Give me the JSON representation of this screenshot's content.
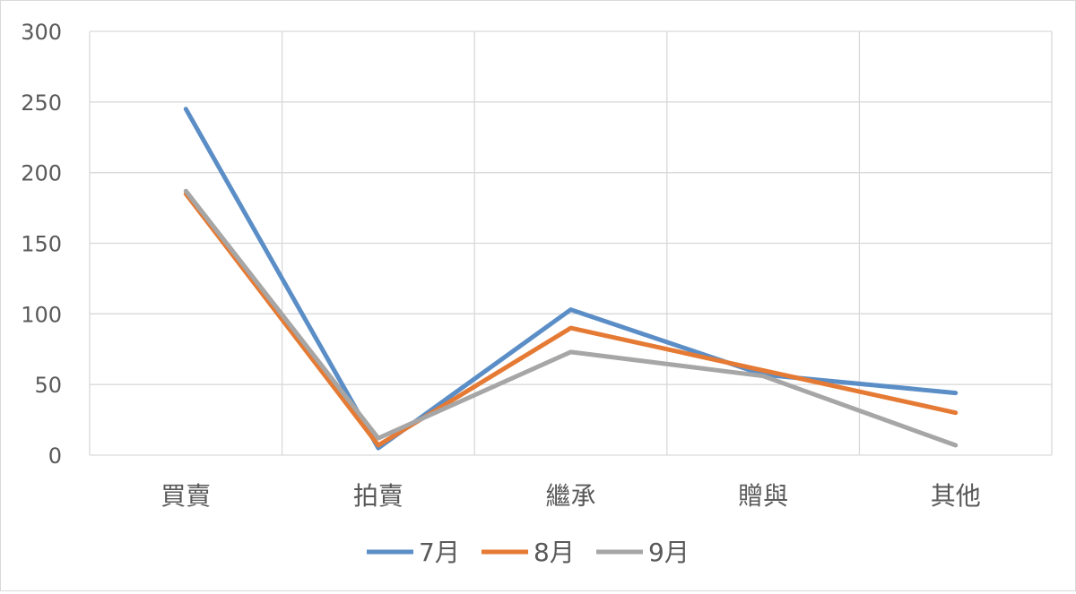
{
  "chart_data": {
    "type": "line",
    "categories": [
      "買賣",
      "拍賣",
      "繼承",
      "贈與",
      "其他"
    ],
    "series": [
      {
        "name": "7月",
        "color": "#5b8ec6",
        "values": [
          245,
          5,
          103,
          57,
          44
        ]
      },
      {
        "name": "8月",
        "color": "#e57a34",
        "values": [
          185,
          7,
          90,
          60,
          30
        ]
      },
      {
        "name": "9月",
        "color": "#a6a6a6",
        "values": [
          187,
          12,
          73,
          56,
          7
        ]
      }
    ],
    "yticks": [
      "0",
      "50",
      "100",
      "150",
      "200",
      "250",
      "300"
    ],
    "ylim": [
      0,
      300
    ],
    "grid": true,
    "legend_position": "bottom",
    "colors": {
      "grid": "#d9d9d9",
      "axis_text": "#595959"
    }
  }
}
